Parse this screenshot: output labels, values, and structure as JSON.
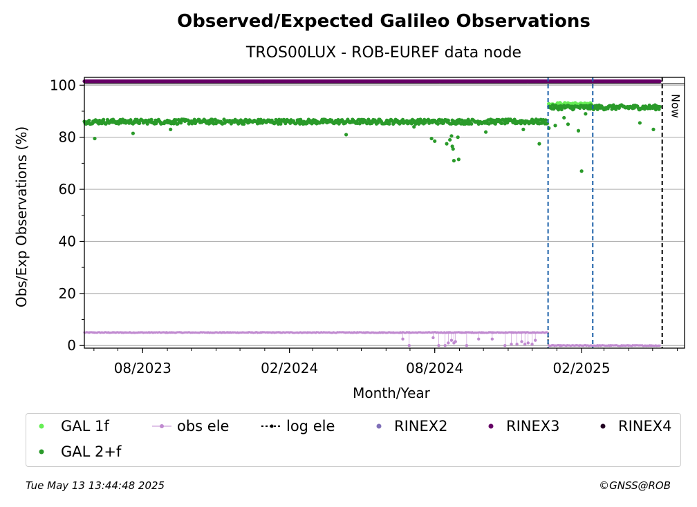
{
  "header": {
    "title": "Observed/Expected Galileo Observations",
    "subtitle": "TROS00LUX - ROB-EUREF data node"
  },
  "footer": {
    "timestamp": "Tue May 13 13:44:48 2025",
    "copyright": "©GNSS@ROB"
  },
  "colors": {
    "gal_1f": "#66ee55",
    "gal_2f": "#2a9a2a",
    "obs_ele": "#c08ad0",
    "log_ele": "#000000",
    "rinex2": "#8070b8",
    "rinex3": "#660066",
    "rinex4": "#220022",
    "vline_blue": "#1a5fa8"
  },
  "chart_data": {
    "type": "scatter",
    "xlabel": "Month/Year",
    "ylabel": "Obs/Exp Observations (%)",
    "x_range": [
      "2023-05-20",
      "2025-06-10"
    ],
    "ylim": [
      -1,
      103
    ],
    "x_ticks": [
      {
        "date": "2023-08-01",
        "label": "08/2023"
      },
      {
        "date": "2024-02-01",
        "label": "02/2024"
      },
      {
        "date": "2024-08-01",
        "label": "08/2024"
      },
      {
        "date": "2025-02-01",
        "label": "02/2025"
      }
    ],
    "y_ticks": [
      0,
      20,
      40,
      60,
      80,
      100
    ],
    "grid": "horizontal",
    "now_date": "2025-05-13",
    "now_label": "Now",
    "vlines": [
      "2024-12-21",
      "2025-02-15"
    ],
    "series": [
      {
        "name": "GAL 2+f",
        "baseline": [
          {
            "from": "2023-05-20",
            "to": "2024-12-20",
            "value": 86
          },
          {
            "from": "2024-12-22",
            "to": "2025-05-10",
            "value": 91.5
          }
        ],
        "outliers": [
          {
            "x": "2023-06-02",
            "y": 79.5
          },
          {
            "x": "2023-07-20",
            "y": 81.5
          },
          {
            "x": "2023-09-05",
            "y": 83
          },
          {
            "x": "2024-04-12",
            "y": 81
          },
          {
            "x": "2024-07-06",
            "y": 84
          },
          {
            "x": "2024-07-28",
            "y": 79.5
          },
          {
            "x": "2024-08-01",
            "y": 78.5
          },
          {
            "x": "2024-08-16",
            "y": 77.5
          },
          {
            "x": "2024-08-20",
            "y": 79
          },
          {
            "x": "2024-08-22",
            "y": 80.5
          },
          {
            "x": "2024-08-23",
            "y": 76.5
          },
          {
            "x": "2024-08-24",
            "y": 75.5
          },
          {
            "x": "2024-08-25",
            "y": 71
          },
          {
            "x": "2024-08-30",
            "y": 80
          },
          {
            "x": "2024-08-31",
            "y": 71.5
          },
          {
            "x": "2024-10-04",
            "y": 82
          },
          {
            "x": "2024-11-20",
            "y": 83
          },
          {
            "x": "2024-12-10",
            "y": 77.5
          },
          {
            "x": "2024-12-22",
            "y": 83.5
          },
          {
            "x": "2024-12-30",
            "y": 84.5
          },
          {
            "x": "2025-01-10",
            "y": 87.5
          },
          {
            "x": "2025-01-15",
            "y": 85
          },
          {
            "x": "2025-01-28",
            "y": 82.5
          },
          {
            "x": "2025-02-01",
            "y": 67
          },
          {
            "x": "2025-02-06",
            "y": 89
          },
          {
            "x": "2025-04-15",
            "y": 85.5
          },
          {
            "x": "2025-05-02",
            "y": 83
          }
        ]
      },
      {
        "name": "GAL 1f",
        "baseline": [
          {
            "from": "2024-12-22",
            "to": "2025-02-14",
            "value": 92.5
          }
        ]
      },
      {
        "name": "obs ele",
        "baseline": [
          {
            "from": "2023-05-20",
            "to": "2024-12-20",
            "value": 5
          },
          {
            "from": "2024-12-22",
            "to": "2025-05-10",
            "value": 0
          }
        ],
        "outliers": [
          {
            "x": "2024-06-22",
            "y": 2.5
          },
          {
            "x": "2024-06-30",
            "y": 0
          },
          {
            "x": "2024-07-30",
            "y": 3
          },
          {
            "x": "2024-08-06",
            "y": 0
          },
          {
            "x": "2024-08-14",
            "y": 0
          },
          {
            "x": "2024-08-18",
            "y": 1
          },
          {
            "x": "2024-08-22",
            "y": 2
          },
          {
            "x": "2024-08-25",
            "y": 1
          },
          {
            "x": "2024-08-27",
            "y": 1.5
          },
          {
            "x": "2024-09-10",
            "y": 0
          },
          {
            "x": "2024-09-25",
            "y": 2.5
          },
          {
            "x": "2024-10-12",
            "y": 2.5
          },
          {
            "x": "2024-10-28",
            "y": 0
          },
          {
            "x": "2024-11-05",
            "y": 0.5
          },
          {
            "x": "2024-11-12",
            "y": 0.5
          },
          {
            "x": "2024-11-18",
            "y": 1.5
          },
          {
            "x": "2024-11-22",
            "y": 0.5
          },
          {
            "x": "2024-11-26",
            "y": 1
          },
          {
            "x": "2024-12-01",
            "y": 0.5
          },
          {
            "x": "2024-12-05",
            "y": 2
          }
        ]
      },
      {
        "name": "log ele",
        "segments": [
          {
            "from": "2023-05-20",
            "to": "2024-12-21",
            "value": 5
          },
          {
            "from": "2024-12-21",
            "to": "2025-05-13",
            "value": 0
          }
        ]
      },
      {
        "name": "RINEX3",
        "baseline": [
          {
            "from": "2023-05-20",
            "to": "2025-05-10",
            "value": 101.5
          }
        ]
      },
      {
        "name": "RINEX2"
      },
      {
        "name": "RINEX4"
      }
    ]
  }
}
